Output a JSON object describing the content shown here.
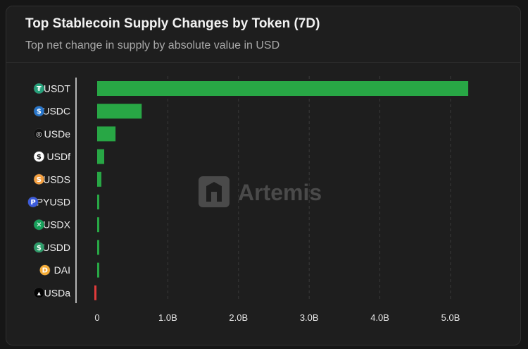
{
  "header": {
    "title": "Top Stablecoin Supply Changes by Token (7D)",
    "subtitle": "Top net change in supply by absolute value in USD"
  },
  "watermark": {
    "text": "Artemis"
  },
  "chart_data": {
    "type": "bar",
    "orientation": "horizontal",
    "categories": [
      "USDT",
      "USDC",
      "USDe",
      "USDf",
      "USDS",
      "PYUSD",
      "USDX",
      "USDD",
      "DAI",
      "USDa"
    ],
    "values": [
      5.25,
      0.63,
      0.26,
      0.1,
      0.06,
      0.03,
      0.03,
      0.03,
      0.03,
      -0.03
    ],
    "unit": "B USD",
    "xlim": [
      0,
      5.25
    ],
    "xticks": [
      0,
      1,
      2,
      3,
      4,
      5
    ],
    "xtick_labels": [
      "0",
      "1.0B",
      "2.0B",
      "3.0B",
      "4.0B",
      "5.0B"
    ],
    "grid": "vertical-dashed",
    "legend": "none",
    "colors": {
      "positive": "#28a745",
      "negative": "#e03b3b"
    },
    "icons": [
      {
        "name": "tether-icon",
        "bg": "#26a17b",
        "glyph": "₮",
        "fg": "#ffffff"
      },
      {
        "name": "usdc-icon",
        "bg": "#2775ca",
        "glyph": "$",
        "fg": "#ffffff"
      },
      {
        "name": "usde-icon",
        "bg": "#111111",
        "glyph": "◎",
        "fg": "#ffffff"
      },
      {
        "name": "usdf-icon",
        "bg": "#ffffff",
        "glyph": "$",
        "fg": "#111111"
      },
      {
        "name": "usds-icon",
        "bg": "#f5a142",
        "glyph": "S",
        "fg": "#ffffff"
      },
      {
        "name": "pyusd-icon",
        "bg": "#3b5bdb",
        "glyph": "P",
        "fg": "#ffffff"
      },
      {
        "name": "usdx-icon",
        "bg": "#16a05a",
        "glyph": "✕",
        "fg": "#ffffff"
      },
      {
        "name": "usdd-icon",
        "bg": "#2e9d6a",
        "glyph": "$",
        "fg": "#ffffff"
      },
      {
        "name": "dai-icon",
        "bg": "#f5ac37",
        "glyph": "D",
        "fg": "#ffffff"
      },
      {
        "name": "usda-icon",
        "bg": "#050505",
        "glyph": "▴",
        "fg": "#ffffff"
      }
    ]
  }
}
